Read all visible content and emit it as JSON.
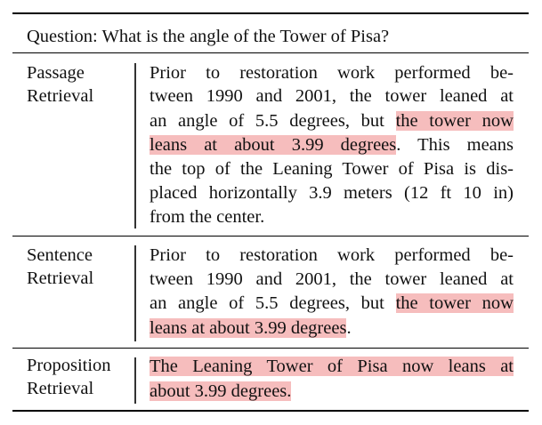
{
  "question": "Question: What is the angle of the Tower of Pisa?",
  "rows": [
    {
      "label_lines": [
        "Passage",
        "Retrieval"
      ],
      "lines": [
        {
          "segments": [
            {
              "text": "Prior to restoration work performed be-",
              "hl": false
            }
          ]
        },
        {
          "segments": [
            {
              "text": "tween 1990 and 2001, the tower leaned at",
              "hl": false
            }
          ]
        },
        {
          "segments": [
            {
              "text": "an angle of 5.5 degrees, but  ",
              "hl": false
            },
            {
              "text": "the tower now",
              "hl": true
            }
          ]
        },
        {
          "segments": [
            {
              "text": "leans at about 3.99 degrees",
              "hl": true
            },
            {
              "text": ".  This means",
              "hl": false
            }
          ]
        },
        {
          "segments": [
            {
              "text": "the top of the Leaning Tower of Pisa is dis-",
              "hl": false
            }
          ]
        },
        {
          "segments": [
            {
              "text": "placed horizontally 3.9 meters (12 ft 10 in)",
              "hl": false
            }
          ]
        },
        {
          "segments": [
            {
              "text": "from the center.",
              "hl": false
            }
          ]
        }
      ]
    },
    {
      "label_lines": [
        "Sentence",
        "Retrieval"
      ],
      "lines": [
        {
          "segments": [
            {
              "text": "Prior to restoration work performed be-",
              "hl": false
            }
          ]
        },
        {
          "segments": [
            {
              "text": "tween 1990 and 2001, the tower leaned at",
              "hl": false
            }
          ]
        },
        {
          "segments": [
            {
              "text": "an angle of 5.5 degrees, but ",
              "hl": false
            },
            {
              "text": "the tower now",
              "hl": true
            }
          ]
        },
        {
          "segments": [
            {
              "text": "leans at about 3.99 degrees",
              "hl": true
            },
            {
              "text": ".",
              "hl": false
            }
          ]
        }
      ]
    },
    {
      "label_lines": [
        "Proposition",
        "Retrieval"
      ],
      "lines": [
        {
          "segments": [
            {
              "text": "The Leaning Tower of Pisa now leans at",
              "hl": true
            }
          ]
        },
        {
          "segments": [
            {
              "text": "about 3.99 degrees.",
              "hl": true
            }
          ]
        }
      ]
    }
  ]
}
